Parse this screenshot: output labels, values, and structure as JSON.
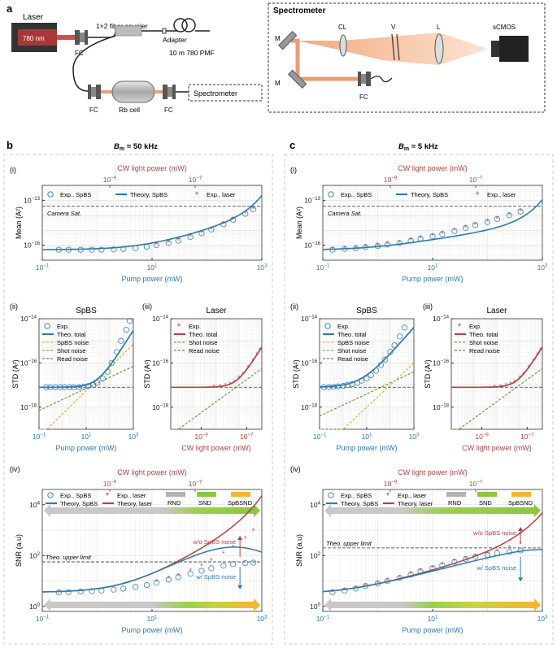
{
  "panel_letters": {
    "a": "a",
    "b": "b",
    "c": "c"
  },
  "setup": {
    "laser_label": "Laser",
    "laser_wavelength": "780 nm",
    "coupler": "1×2 fiber coupler",
    "adapter": "Adapter",
    "fiber": "10 m 780 PMF",
    "fc": "FC",
    "rb_cell": "Rb cell",
    "spectrometer_box": "Spectrometer",
    "spectrometer_title": "Spectrometer",
    "m": "M",
    "cl": "CL",
    "v": "V",
    "l": "L",
    "camera": "sCMOS"
  },
  "colors": {
    "sbps": "#2a7ab8",
    "laser": "#b84040",
    "shot": "#6b8e23",
    "spbs_noise": "#e3a92c",
    "read": "#555555",
    "rnd": "#b3b3b3",
    "snd": "#8cc63f",
    "spbsnd": "#f2b632",
    "top_axis": "#b84040",
    "bottom_axis": "#2a7ab8"
  },
  "chart_data": [
    {
      "id": "b-i",
      "type": "scatter",
      "column_title": {
        "B": "B",
        "sub": "m",
        "rest": " = 50 kHz"
      },
      "roman": "(i)",
      "top_xlabel": "CW light power (mW)",
      "top_ticks": [
        "10",
        "10"
      ],
      "top_tick_exp": [
        "−9",
        "−7"
      ],
      "xlabel": "Pump power (mW)",
      "ylabel": "Mean (A²)",
      "xlim": [
        0.1,
        1000
      ],
      "ylim_exp": [
        -17,
        -12
      ],
      "yticks": [
        {
          "b": "10",
          "e": "−16"
        },
        {
          "b": "10",
          "e": "−13"
        }
      ],
      "xticks": [
        {
          "b": "10",
          "e": "−1"
        },
        {
          "b": "10",
          "e": "1"
        },
        {
          "b": "10",
          "e": "3"
        }
      ],
      "legend": [
        "Exp., SpBS",
        "Theory, SpBS",
        "Exp., laser"
      ],
      "annotation": "Camera Sat.",
      "saturation_exp": -13.4,
      "series": [
        {
          "name": "Exp., SpBS",
          "x": [
            0.2,
            0.3,
            0.5,
            0.8,
            1.2,
            2,
            3,
            5,
            8,
            12,
            20,
            30,
            50,
            80,
            120,
            200,
            300,
            500,
            700
          ],
          "y_exp": [
            -16.3,
            -16.3,
            -16.3,
            -16.3,
            -16.3,
            -16.28,
            -16.25,
            -16.2,
            -16.1,
            -16,
            -15.85,
            -15.7,
            -15.45,
            -15.2,
            -14.95,
            -14.6,
            -14.3,
            -13.9,
            -13.6
          ]
        },
        {
          "name": "Exp., laser",
          "x": [
            12,
            20,
            30,
            50,
            80,
            120,
            200,
            300,
            500,
            700
          ],
          "y_exp": [
            -16,
            -15.85,
            -15.7,
            -15.45,
            -15.2,
            -14.95,
            -14.6,
            -14.3,
            -13.9,
            -13.6
          ]
        }
      ]
    },
    {
      "id": "c-i",
      "type": "scatter",
      "column_title": {
        "B": "B",
        "sub": "m",
        "rest": " = 5 kHz"
      },
      "roman": "(i)",
      "top_xlabel": "CW light power (mW)",
      "top_ticks": [
        "10",
        "10"
      ],
      "top_tick_exp": [
        "−9",
        "−7"
      ],
      "xlabel": "Pump power (mW)",
      "ylabel": "Mean (A²)",
      "xlim": [
        0.1,
        1000
      ],
      "ylim_exp": [
        -17,
        -12
      ],
      "yticks": [
        {
          "b": "10",
          "e": "−16"
        },
        {
          "b": "10",
          "e": "−13"
        }
      ],
      "xticks": [
        {
          "b": "10",
          "e": "−1"
        },
        {
          "b": "10",
          "e": "1"
        },
        {
          "b": "10",
          "e": "3"
        }
      ],
      "legend": [
        "Exp., SpBS",
        "Theory, SpBS",
        "Exp., laser"
      ],
      "annotation": "Camera Sat.",
      "saturation_exp": -13.4,
      "series": [
        {
          "name": "Exp., SpBS",
          "x": [
            0.15,
            0.25,
            0.4,
            0.6,
            1,
            1.5,
            2.5,
            4,
            6,
            10,
            15,
            25,
            40,
            60,
            100,
            150,
            250,
            400
          ],
          "y_exp": [
            -16.3,
            -16.25,
            -16.2,
            -16.12,
            -16.05,
            -15.95,
            -15.85,
            -15.7,
            -15.55,
            -15.4,
            -15.25,
            -15.05,
            -14.85,
            -14.65,
            -14.45,
            -14.25,
            -14,
            -13.75
          ]
        },
        {
          "name": "Exp., laser",
          "x": [
            0.15,
            0.25,
            0.4,
            0.6,
            1,
            1.5,
            2.5,
            4,
            6,
            10,
            15,
            25,
            40,
            60,
            100,
            150,
            250,
            400
          ],
          "y_exp": [
            -16.3,
            -16.25,
            -16.2,
            -16.12,
            -16.05,
            -15.95,
            -15.85,
            -15.7,
            -15.55,
            -15.4,
            -15.25,
            -15.05,
            -14.85,
            -14.65,
            -14.45,
            -14.25,
            -14,
            -13.75
          ]
        }
      ]
    },
    {
      "id": "b-ii",
      "type": "line",
      "roman": "(ii)",
      "title": "SpBS",
      "xlabel": "Pump power (mW)",
      "ylabel": "STD (A²)",
      "xlim": [
        0.1,
        1000
      ],
      "ylim_exp": [
        -19,
        -14
      ],
      "yticks": [
        {
          "b": "10",
          "e": "−14"
        },
        {
          "b": "10",
          "e": "−16"
        },
        {
          "b": "10",
          "e": "−18"
        }
      ],
      "xticks": [
        {
          "b": "10",
          "e": "−1"
        },
        {
          "b": "10",
          "e": "1"
        },
        {
          "b": "10",
          "e": "3"
        }
      ],
      "legend": [
        "Exp.",
        "Theo. total",
        "SpBS noise",
        "Shot noise",
        "Read noise"
      ],
      "series": [
        {
          "name": "Exp.",
          "x": [
            0.2,
            0.3,
            0.5,
            0.8,
            1.2,
            2,
            3,
            5,
            8,
            12,
            20,
            30,
            50,
            80,
            120,
            200,
            300,
            500,
            700
          ],
          "y_exp": [
            -17.1,
            -17.1,
            -17.1,
            -17.1,
            -17.1,
            -17.1,
            -17.1,
            -17.1,
            -17.08,
            -17.05,
            -17,
            -16.9,
            -16.7,
            -16.4,
            -16.0,
            -15.5,
            -15.0,
            -14.5,
            -14.1
          ]
        }
      ]
    },
    {
      "id": "b-iii",
      "type": "line",
      "roman": "(iii)",
      "title": "Laser",
      "xlabel": "CW light power (mW)",
      "ylabel": "STD (A²)",
      "ylim_exp": [
        -19,
        -14
      ],
      "yticks": [
        {
          "b": "10",
          "e": "−14"
        },
        {
          "b": "10",
          "e": "−16"
        },
        {
          "b": "10",
          "e": "−18"
        }
      ],
      "xticks": [
        {
          "b": "10",
          "e": "−9"
        },
        {
          "b": "10",
          "e": "−7"
        }
      ],
      "legend": [
        "Exp.",
        "Theo. total",
        "Shot noise",
        "Read noise"
      ]
    },
    {
      "id": "c-ii",
      "type": "line",
      "roman": "(ii)",
      "title": "SpBS",
      "xlabel": "Pump power (mW)",
      "ylabel": "STD (A²)",
      "xlim": [
        0.1,
        1000
      ],
      "ylim_exp": [
        -19,
        -14
      ],
      "yticks": [
        {
          "b": "10",
          "e": "−14"
        },
        {
          "b": "10",
          "e": "−16"
        },
        {
          "b": "10",
          "e": "−18"
        }
      ],
      "xticks": [
        {
          "b": "10",
          "e": "−1"
        },
        {
          "b": "10",
          "e": "1"
        },
        {
          "b": "10",
          "e": "3"
        }
      ],
      "legend": [
        "Exp.",
        "Theo. total",
        "SpBS noise",
        "Shot noise",
        "Read noise"
      ],
      "series": [
        {
          "name": "Exp.",
          "x": [
            0.15,
            0.25,
            0.4,
            0.6,
            1,
            1.5,
            2.5,
            4,
            6,
            10,
            15,
            25,
            40,
            60,
            100,
            150,
            250,
            400
          ],
          "y_exp": [
            -17.1,
            -17.1,
            -17.08,
            -17.06,
            -17.04,
            -17.0,
            -16.95,
            -16.9,
            -16.8,
            -16.7,
            -16.55,
            -16.35,
            -16.1,
            -15.85,
            -15.5,
            -15.2,
            -14.8,
            -14.4
          ]
        }
      ]
    },
    {
      "id": "c-iii",
      "type": "line",
      "roman": "(iii)",
      "title": "Laser",
      "xlabel": "CW light power (mW)",
      "ylabel": "STD (A²)",
      "ylim_exp": [
        -19,
        -14
      ],
      "yticks": [
        {
          "b": "10",
          "e": "−14"
        },
        {
          "b": "10",
          "e": "−16"
        },
        {
          "b": "10",
          "e": "−18"
        }
      ],
      "xticks": [
        {
          "b": "10",
          "e": "−9"
        },
        {
          "b": "10",
          "e": "−7"
        }
      ],
      "legend": [
        "Exp.",
        "Theo. total",
        "Shot noise",
        "Read noise"
      ]
    },
    {
      "id": "b-iv",
      "type": "scatter",
      "roman": "(iv)",
      "top_xlabel": "CW light power (mW)",
      "top_ticks": [
        "10",
        "10"
      ],
      "top_tick_exp": [
        "−9",
        "−7"
      ],
      "xlabel": "Pump power (mW)",
      "ylabel": "SNR (a.u)",
      "xlim": [
        0.1,
        1000
      ],
      "ylim_exp": [
        -0.2,
        4.6
      ],
      "yticks": [
        {
          "b": "10",
          "e": "0"
        },
        {
          "b": "10",
          "e": "2"
        },
        {
          "b": "10",
          "e": "4"
        }
      ],
      "xticks": [
        {
          "b": "10",
          "e": "−1"
        },
        {
          "b": "10",
          "e": "1"
        },
        {
          "b": "10",
          "e": "3"
        }
      ],
      "legend": [
        "Exp., SpBS",
        "Exp., laser",
        "RND",
        "SND",
        "SpBSND",
        "Theory, SpBS",
        "Theory, laser"
      ],
      "annotations": {
        "upper": "Theo. upper limit",
        "wo": "w/o SpBS noise",
        "w": "w/ SpBS noise"
      },
      "upper_limit_exp": 1.75,
      "series": [
        {
          "name": "Exp., SpBS",
          "x": [
            0.2,
            0.3,
            0.5,
            0.8,
            1.2,
            2,
            3,
            5,
            8,
            12,
            20,
            30,
            50,
            80,
            120,
            200,
            300,
            500,
            700
          ],
          "y_exp": [
            0.55,
            0.56,
            0.58,
            0.6,
            0.62,
            0.66,
            0.7,
            0.76,
            0.84,
            0.93,
            1.05,
            1.15,
            1.28,
            1.4,
            1.5,
            1.6,
            1.66,
            1.7,
            1.72
          ]
        },
        {
          "name": "Exp., laser",
          "x": [
            12,
            20,
            30,
            50,
            80,
            120,
            200,
            300,
            500,
            700
          ],
          "y_exp": [
            0.95,
            1.08,
            1.2,
            1.38,
            1.58,
            1.78,
            2.05,
            2.3,
            2.65,
            2.95
          ]
        }
      ]
    },
    {
      "id": "c-iv",
      "type": "scatter",
      "roman": "(iv)",
      "top_xlabel": "CW light power (mW)",
      "top_ticks": [
        "10",
        "10"
      ],
      "top_tick_exp": [
        "−9",
        "−7"
      ],
      "xlabel": "Pump power (mW)",
      "ylabel": "SNR (a.u)",
      "xlim": [
        0.1,
        1000
      ],
      "ylim_exp": [
        -0.2,
        4.6
      ],
      "yticks": [
        {
          "b": "10",
          "e": "0"
        },
        {
          "b": "10",
          "e": "2"
        },
        {
          "b": "10",
          "e": "4"
        }
      ],
      "xticks": [
        {
          "b": "10",
          "e": "−1"
        },
        {
          "b": "10",
          "e": "1"
        },
        {
          "b": "10",
          "e": "3"
        }
      ],
      "legend": [
        "Exp., SpBS",
        "Exp., laser",
        "RND",
        "SND",
        "SpBSND",
        "Theory, SpBS",
        "Theory, laser"
      ],
      "annotations": {
        "upper": "Theo. upper limit",
        "wo": "w/o SpBS noise",
        "w": "w/ SpBS noise"
      },
      "upper_limit_exp": 2.3,
      "series": [
        {
          "name": "Exp., SpBS",
          "x": [
            0.15,
            0.25,
            0.4,
            0.6,
            1,
            1.5,
            2.5,
            4,
            6,
            10,
            15,
            25,
            40,
            60,
            100,
            150,
            250,
            400
          ],
          "y_exp": [
            0.55,
            0.62,
            0.7,
            0.8,
            0.9,
            1.0,
            1.12,
            1.25,
            1.38,
            1.5,
            1.62,
            1.75,
            1.86,
            1.95,
            2.03,
            2.1,
            2.15,
            2.2
          ]
        },
        {
          "name": "Exp., laser",
          "x": [
            0.15,
            0.25,
            0.4,
            0.6,
            1,
            1.5,
            2.5,
            4,
            6,
            10,
            15,
            25,
            40,
            60,
            100,
            150,
            250,
            400
          ],
          "y_exp": [
            0.55,
            0.62,
            0.7,
            0.8,
            0.9,
            1.0,
            1.12,
            1.25,
            1.38,
            1.5,
            1.62,
            1.75,
            1.86,
            1.95,
            2.05,
            2.15,
            2.3,
            2.45
          ]
        }
      ]
    }
  ]
}
